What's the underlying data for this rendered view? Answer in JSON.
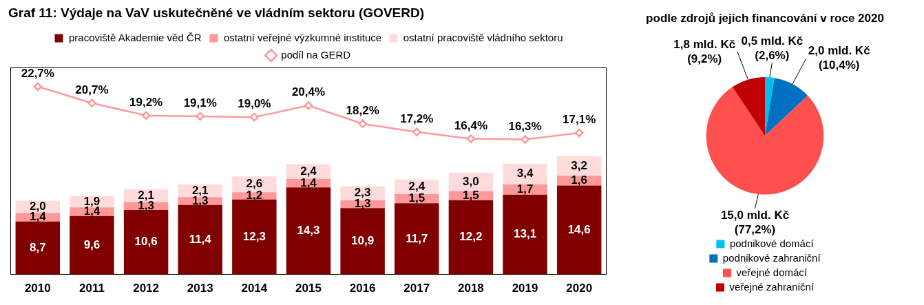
{
  "chart_data": [
    {
      "type": "bar",
      "title": "Graf 11: Výdaje na VaV uskutečněné ve vládním sektoru (GOVERD)",
      "stacked": true,
      "legend": "top",
      "grid": false,
      "tick_labels": "x",
      "ylim": [
        0,
        34
      ],
      "y2lim": [
        0,
        25
      ],
      "categories": [
        "2010",
        "2011",
        "2012",
        "2013",
        "2014",
        "2015",
        "2016",
        "2017",
        "2018",
        "2019",
        "2020"
      ],
      "series": [
        {
          "name": "pracoviště Akademie věd ČR",
          "color": "#800000",
          "values": [
            8.7,
            9.6,
            10.6,
            11.4,
            12.3,
            14.3,
            10.9,
            11.7,
            12.2,
            13.1,
            14.6
          ],
          "value_labels": [
            "8,7",
            "9,6",
            "10,6",
            "11,4",
            "12,3",
            "14,3",
            "10,9",
            "11,7",
            "12,2",
            "13,1",
            "14,6"
          ]
        },
        {
          "name": "ostatní veřejné výzkumné instituce",
          "color": "#ff9999",
          "values": [
            1.4,
            1.4,
            1.3,
            1.3,
            1.2,
            1.4,
            1.3,
            1.5,
            1.5,
            1.7,
            1.6
          ],
          "value_labels": [
            "1,4",
            "1,4",
            "1,3",
            "1,3",
            "1,2",
            "1,4",
            "1,3",
            "1,5",
            "1,5",
            "1,7",
            "1,6"
          ]
        },
        {
          "name": "ostatní pracoviště vládního sektoru",
          "color": "#ffdcdc",
          "values": [
            2.0,
            1.9,
            2.1,
            2.1,
            2.6,
            2.4,
            2.3,
            2.4,
            3.0,
            3.4,
            3.2
          ],
          "value_labels": [
            "2,0",
            "1,9",
            "2,1",
            "2,1",
            "2,6",
            "2,4",
            "2,3",
            "2,4",
            "3,0",
            "3,4",
            "3,2"
          ]
        },
        {
          "name": "podíl na GERD",
          "type": "line",
          "axis": "y2",
          "marker": "diamond",
          "color": "#ff9999",
          "values": [
            22.7,
            20.7,
            19.2,
            19.1,
            19.0,
            20.4,
            18.2,
            17.2,
            16.4,
            16.3,
            17.1
          ],
          "value_labels": [
            "22,7%",
            "20,7%",
            "19,2%",
            "19,1%",
            "19,0%",
            "20,4%",
            "18,2%",
            "17,2%",
            "16,4%",
            "16,3%",
            "17,1%"
          ]
        }
      ]
    },
    {
      "type": "pie",
      "title": "podle zdrojů jejich financování v roce 2020",
      "legend": "bottom",
      "categories": [
        "podnikové domácí",
        "podnikové zahraniční",
        "veřejné domácí",
        "veřejné zahraniční"
      ],
      "values": [
        0.5,
        2.0,
        15.0,
        1.8
      ],
      "colors": [
        "#00c0f0",
        "#0070c0",
        "#ff5050",
        "#c00000"
      ],
      "value_labels": [
        "0,5 mld. Kč (2,6%)",
        "2,0 mld. Kč (10,4%)",
        "15,0 mld. Kč (77,2%)",
        "1,8 mld. Kč (9,2%)"
      ]
    }
  ]
}
